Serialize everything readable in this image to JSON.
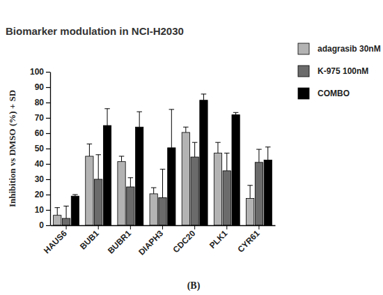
{
  "chart_data": {
    "type": "bar",
    "title": "Biomarker modulation in NCI-H2030",
    "subtitle": "(B)",
    "y_label": "Inhibition vs DMSO (%) + SD",
    "categories": [
      "HAUS6",
      "BUB1",
      "BUBR1",
      "DIAPH3",
      "CDC20",
      "PLK1",
      "CYR61"
    ],
    "series": [
      {
        "name": "adagrasib 30nM",
        "color": "#b3b3b3",
        "values": [
          6.5,
          45,
          41.5,
          20.5,
          60.5,
          47,
          17.5
        ],
        "errors": [
          5,
          8,
          3.5,
          4,
          3.5,
          7,
          8.5
        ]
      },
      {
        "name": "K-975 100nM",
        "color": "#6b6b6b",
        "values": [
          4.5,
          30,
          25,
          18,
          44.5,
          35.5,
          41
        ],
        "errors": [
          8,
          16,
          6,
          18.5,
          9.5,
          11.5,
          8.5
        ]
      },
      {
        "name": "COMBO",
        "color": "#000000",
        "values": [
          19,
          65,
          64,
          50.5,
          81.5,
          72,
          42.5
        ],
        "errors": [
          1,
          11,
          10,
          25,
          4,
          1.5,
          8.5
        ]
      }
    ],
    "ylim": [
      0,
      100
    ],
    "yticks": [
      0,
      10,
      20,
      30,
      40,
      50,
      60,
      70,
      80,
      90,
      100
    ],
    "grid": false,
    "legend": "top-right"
  }
}
